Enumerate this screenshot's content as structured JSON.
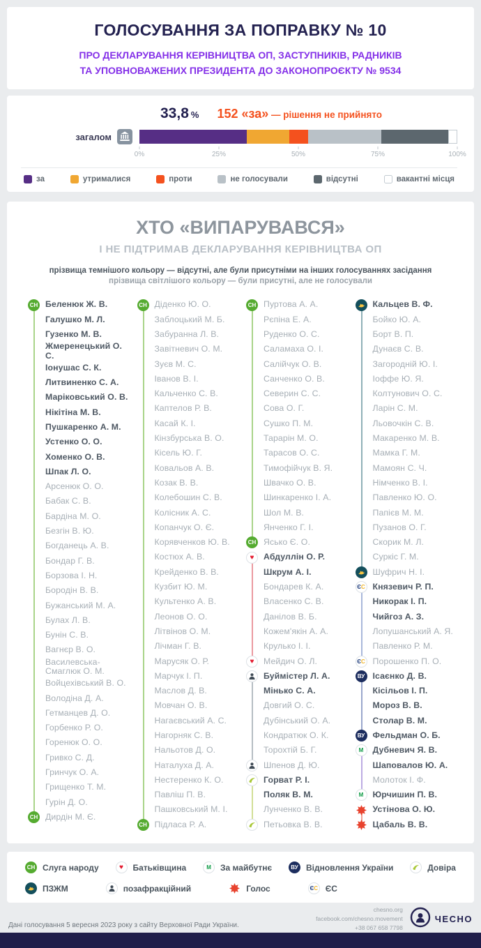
{
  "header": {
    "title": "ГОЛОСУВАННЯ ЗА ПОПРАВКУ № 10",
    "subtitle_line1": "ПРО ДЕКЛАРУВАННЯ КЕРІВНИЦТВА ОП, ЗАСТУПНИКІВ, РАДНИКІВ",
    "subtitle_line2": "ТА УПОВНОВАЖЕНИХ ПРЕЗИДЕНТА ДО ЗАКОНОПРОЄКТУ № 9534"
  },
  "vote": {
    "percent": "33,8",
    "percent_sign": "%",
    "result_highlight": "152 «за»",
    "result_rest": " — рішення не прийнято",
    "bar_label": "загалом"
  },
  "chart_data": {
    "type": "bar",
    "variant": "stacked-horizontal",
    "title": "Голосування за поправку № 10 — загалом",
    "x_ticks": [
      "0%",
      "25%",
      "50%",
      "75%",
      "100%"
    ],
    "xlim": [
      0,
      100
    ],
    "series": [
      {
        "key": "za",
        "name": "за",
        "value": 33.8,
        "color": "#562e85"
      },
      {
        "key": "utrymalysia",
        "name": "утрималися",
        "value": 13.4,
        "color": "#f0a732"
      },
      {
        "key": "proty",
        "name": "проти",
        "value": 5.8,
        "color": "#f4511e"
      },
      {
        "key": "ne_holosuvaly",
        "name": "не голосували",
        "value": 23.0,
        "color": "#b9c1c7"
      },
      {
        "key": "vidsutni",
        "name": "відсутні",
        "value": 21.2,
        "color": "#5c676e"
      },
      {
        "key": "vakantni",
        "name": "вакантні місця",
        "value": 2.8,
        "color": "#ffffff",
        "border": "#c4ccd2"
      }
    ]
  },
  "who": {
    "title": "ХТО «ВИПАРУВАВСЯ»",
    "subtitle": "І НЕ ПІДТРИМАВ ДЕКЛАРУВАННЯ КЕРІВНИЦТВА ОП",
    "note_dark": "прізвища темнішого кольору — відсутні, але були присутніми на інших голосуваннях засідання",
    "note_light": "прізвища світлішого кольору — були присутні, але не голосували"
  },
  "parties": {
    "sn": {
      "label": "Слуга народу",
      "abbr": "СН",
      "icon": "sn-badge",
      "color": "#55ab30",
      "line": "#a9d489"
    },
    "batk": {
      "label": "Батьківщина",
      "icon": "heart",
      "color": "#e3172c",
      "line": "#eb9aa0"
    },
    "zm": {
      "label": "За майбутнє",
      "abbr": "М",
      "icon": "zm-badge",
      "color": "#0d9a44",
      "line": "#bcabe2"
    },
    "vu": {
      "label": "Відновлення України",
      "abbr": "ВУ",
      "icon": "vu-badge",
      "color": "#1c2d5e",
      "line": "#9aa7cc"
    },
    "dovira": {
      "label": "Довіра",
      "icon": "dovira-swoosh",
      "color": "#a9c838",
      "line": "#d2df96"
    },
    "pzhm": {
      "label": "ПЗЖМ",
      "icon": "dove",
      "color": "#144f5c",
      "line": "#8fb0b7"
    },
    "nf": {
      "label": "позафракційний",
      "icon": "person",
      "color": "#3e4a55",
      "line": "#b6bdc3"
    },
    "holos": {
      "label": "Голос",
      "icon": "burst",
      "color": "#e8432e",
      "line": "#f2a195"
    },
    "es": {
      "label": "ЄС",
      "abbr": "ЄС",
      "icon": "es-badge",
      "color": "#1f3d7c",
      "color2": "#f0b429",
      "line": "#a9b8da"
    }
  },
  "legend_rows": [
    [
      "sn",
      "batk",
      "zm",
      "vu",
      "dovira"
    ],
    [
      "pzhm",
      "nf",
      "holos",
      "es"
    ]
  ],
  "columns": [
    [
      {
        "party": "sn",
        "members": [
          {
            "n": "Беленюк Ж. В.",
            "s": "d"
          },
          {
            "n": "Галушко М. Л.",
            "s": "d"
          },
          {
            "n": "Гузенко М. В.",
            "s": "d"
          },
          {
            "n": "Жмеренецький О. С.",
            "s": "d"
          },
          {
            "n": "Іонушас С. К.",
            "s": "d"
          },
          {
            "n": "Литвиненко С. А.",
            "s": "d"
          },
          {
            "n": "Маріковський О. В.",
            "s": "d"
          },
          {
            "n": "Нікітіна М. В.",
            "s": "d"
          },
          {
            "n": "Пушкаренко А. М.",
            "s": "d"
          },
          {
            "n": "Устенко О. О.",
            "s": "d"
          },
          {
            "n": "Хоменко О. В.",
            "s": "d"
          },
          {
            "n": "Шпак Л. О.",
            "s": "d"
          },
          {
            "n": "Арсенюк О. О.",
            "s": "l"
          },
          {
            "n": "Бабак С. В.",
            "s": "l"
          },
          {
            "n": "Бардіна М. О.",
            "s": "l"
          },
          {
            "n": "Безгін В. Ю.",
            "s": "l"
          },
          {
            "n": "Богданець А. В.",
            "s": "l"
          },
          {
            "n": "Бондар Г. В.",
            "s": "l"
          },
          {
            "n": "Борзова І. Н.",
            "s": "l"
          },
          {
            "n": "Бородін В. В.",
            "s": "l"
          },
          {
            "n": "Бужанський М. А.",
            "s": "l"
          },
          {
            "n": "Булах Л. В.",
            "s": "l"
          },
          {
            "n": "Бунін С. В.",
            "s": "l"
          },
          {
            "n": "Вагнєр В. О.",
            "s": "l"
          },
          {
            "n": "Василевська-Смаглюк О. М.",
            "s": "l"
          },
          {
            "n": "Войцехівський В. О.",
            "s": "l"
          },
          {
            "n": "Володіна Д. А.",
            "s": "l"
          },
          {
            "n": "Гетманцев Д. О.",
            "s": "l"
          },
          {
            "n": "Горбенко Р. О.",
            "s": "l"
          },
          {
            "n": "Горенюк О. О.",
            "s": "l"
          },
          {
            "n": "Гривко С. Д.",
            "s": "l"
          },
          {
            "n": "Гринчук О. А.",
            "s": "l"
          },
          {
            "n": "Грищенко Т. М.",
            "s": "l"
          },
          {
            "n": "Гурін Д. О.",
            "s": "l"
          },
          {
            "n": "Дирдін М. Є.",
            "s": "l"
          }
        ]
      }
    ],
    [
      {
        "party": "sn",
        "members": [
          {
            "n": "Діденко Ю. О.",
            "s": "l"
          },
          {
            "n": "Заблоцький М. Б.",
            "s": "l"
          },
          {
            "n": "Забуранна Л. В.",
            "s": "l"
          },
          {
            "n": "Завітневич О. М.",
            "s": "l"
          },
          {
            "n": "Зуєв М. С.",
            "s": "l"
          },
          {
            "n": "Іванов В. І.",
            "s": "l"
          },
          {
            "n": "Кальченко С. В.",
            "s": "l"
          },
          {
            "n": "Каптелов Р. В.",
            "s": "l"
          },
          {
            "n": "Касай К. І.",
            "s": "l"
          },
          {
            "n": "Кінзбурська В. О.",
            "s": "l"
          },
          {
            "n": "Кісель Ю. Г.",
            "s": "l"
          },
          {
            "n": "Ковальов А. В.",
            "s": "l"
          },
          {
            "n": "Козак В. В.",
            "s": "l"
          },
          {
            "n": "Колебошин С. В.",
            "s": "l"
          },
          {
            "n": "Колісник А. С.",
            "s": "l"
          },
          {
            "n": "Копанчук О. Є.",
            "s": "l"
          },
          {
            "n": "Корявченков Ю. В.",
            "s": "l"
          },
          {
            "n": "Костюх А. В.",
            "s": "l"
          },
          {
            "n": "Крейденко В. В.",
            "s": "l"
          },
          {
            "n": "Кузбит Ю. М.",
            "s": "l"
          },
          {
            "n": "Культенко А. В.",
            "s": "l"
          },
          {
            "n": "Леонов О. О.",
            "s": "l"
          },
          {
            "n": "Літвінов О. М.",
            "s": "l"
          },
          {
            "n": "Лічман Г. В.",
            "s": "l"
          },
          {
            "n": "Марусяк О. Р.",
            "s": "l"
          },
          {
            "n": "Марчук І. П.",
            "s": "l"
          },
          {
            "n": "Маслов Д. В.",
            "s": "l"
          },
          {
            "n": "Мовчан О. В.",
            "s": "l"
          },
          {
            "n": "Нагаєвський А. С.",
            "s": "l"
          },
          {
            "n": "Нагорняк С. В.",
            "s": "l"
          },
          {
            "n": "Нальотов Д. О.",
            "s": "l"
          },
          {
            "n": "Наталуха Д. А.",
            "s": "l"
          },
          {
            "n": "Нестеренко К. О.",
            "s": "l"
          },
          {
            "n": "Павліш П. В.",
            "s": "l"
          },
          {
            "n": "Пашковський М. І.",
            "s": "l"
          },
          {
            "n": "Підласа Р. А.",
            "s": "l"
          }
        ]
      }
    ],
    [
      {
        "party": "sn",
        "members": [
          {
            "n": "Пуртова А. А.",
            "s": "l"
          },
          {
            "n": "Рєпіна Е. А.",
            "s": "l"
          },
          {
            "n": "Руденко О. С.",
            "s": "l"
          },
          {
            "n": "Саламаха О. І.",
            "s": "l"
          },
          {
            "n": "Салійчук О. В.",
            "s": "l"
          },
          {
            "n": "Санченко О. В.",
            "s": "l"
          },
          {
            "n": "Северин С. С.",
            "s": "l"
          },
          {
            "n": "Сова О. Г.",
            "s": "l"
          },
          {
            "n": "Сушко П. М.",
            "s": "l"
          },
          {
            "n": "Тарарін М. О.",
            "s": "l"
          },
          {
            "n": "Тарасов О. С.",
            "s": "l"
          },
          {
            "n": "Тимофійчук В. Я.",
            "s": "l"
          },
          {
            "n": "Швачко О. В.",
            "s": "l"
          },
          {
            "n": "Шинкаренко І. А.",
            "s": "l"
          },
          {
            "n": "Шол М. В.",
            "s": "l"
          },
          {
            "n": "Янченко Г. І.",
            "s": "l"
          },
          {
            "n": "Ясько Є. О.",
            "s": "l"
          }
        ]
      },
      {
        "party": "batk",
        "members": [
          {
            "n": "Абдуллін О. Р.",
            "s": "d"
          },
          {
            "n": "Шкрум А. І.",
            "s": "d"
          },
          {
            "n": "Бондарев К. А.",
            "s": "l"
          },
          {
            "n": "Власенко С. В.",
            "s": "l"
          },
          {
            "n": "Данілов В. Б.",
            "s": "l"
          },
          {
            "n": "Кожем'якін А. А.",
            "s": "l"
          },
          {
            "n": "Крулько І. І.",
            "s": "l"
          },
          {
            "n": "Мейдич О. Л.",
            "s": "l"
          }
        ]
      },
      {
        "party": "nf",
        "members": [
          {
            "n": "Буймістер Л. А.",
            "s": "d"
          },
          {
            "n": "Мінько С. А.",
            "s": "d"
          },
          {
            "n": "Довгий О. С.",
            "s": "l"
          },
          {
            "n": "Дубінський О. А.",
            "s": "l"
          },
          {
            "n": "Кондратюк О. К.",
            "s": "l"
          },
          {
            "n": "Торохтій Б. Г.",
            "s": "l"
          },
          {
            "n": "Шпенов Д. Ю.",
            "s": "l"
          }
        ]
      },
      {
        "party": "dovira",
        "members": [
          {
            "n": "Горват Р. І.",
            "s": "d"
          },
          {
            "n": "Поляк В. М.",
            "s": "d"
          },
          {
            "n": "Лунченко В. В.",
            "s": "l"
          },
          {
            "n": "Петьовка В. В.",
            "s": "l"
          }
        ]
      }
    ],
    [
      {
        "party": "pzhm",
        "members": [
          {
            "n": "Кальцев В. Ф.",
            "s": "d"
          },
          {
            "n": "Бойко Ю. А.",
            "s": "l"
          },
          {
            "n": "Борт В. П.",
            "s": "l"
          },
          {
            "n": "Дунаєв С. В.",
            "s": "l"
          },
          {
            "n": "Загородній Ю. І.",
            "s": "l"
          },
          {
            "n": "Іоффе Ю. Я.",
            "s": "l"
          },
          {
            "n": "Колтунович О. С.",
            "s": "l"
          },
          {
            "n": "Ларін С. М.",
            "s": "l"
          },
          {
            "n": "Льовочкін С. В.",
            "s": "l"
          },
          {
            "n": "Макаренко М. В.",
            "s": "l"
          },
          {
            "n": "Мамка Г. М.",
            "s": "l"
          },
          {
            "n": "Мамоян С. Ч.",
            "s": "l"
          },
          {
            "n": "Німченко В. І.",
            "s": "l"
          },
          {
            "n": "Павленко Ю. О.",
            "s": "l"
          },
          {
            "n": "Папієв М. М.",
            "s": "l"
          },
          {
            "n": "Пузанов О. Г.",
            "s": "l"
          },
          {
            "n": "Скорик М. Л.",
            "s": "l"
          },
          {
            "n": "Суркіс Г. М.",
            "s": "l"
          },
          {
            "n": "Шуфрич Н. І.",
            "s": "l"
          }
        ]
      },
      {
        "party": "es",
        "members": [
          {
            "n": "Князевич Р. П.",
            "s": "d"
          },
          {
            "n": "Никорак І. П.",
            "s": "d"
          },
          {
            "n": "Чийгоз А. З.",
            "s": "d"
          },
          {
            "n": "Лопушанський А. Я.",
            "s": "l"
          },
          {
            "n": "Павленко Р. М.",
            "s": "l"
          },
          {
            "n": "Порошенко П. О.",
            "s": "l"
          }
        ]
      },
      {
        "party": "vu",
        "members": [
          {
            "n": "Ісаєнко Д. В.",
            "s": "d"
          },
          {
            "n": "Кісільов І. П.",
            "s": "d"
          },
          {
            "n": "Мороз В. В.",
            "s": "d"
          },
          {
            "n": "Столар В. М.",
            "s": "d"
          },
          {
            "n": "Фельдман О. Б.",
            "s": "d"
          }
        ]
      },
      {
        "party": "zm",
        "members": [
          {
            "n": "Дубневич Я. В.",
            "s": "d"
          },
          {
            "n": "Шаповалов Ю. А.",
            "s": "d"
          },
          {
            "n": "Молоток І. Ф.",
            "s": "l"
          },
          {
            "n": "Юрчишин П. В.",
            "s": "d"
          }
        ]
      },
      {
        "party": "holos",
        "members": [
          {
            "n": "Устінова О. Ю.",
            "s": "d"
          },
          {
            "n": "Цабаль В. В.",
            "s": "d"
          }
        ]
      }
    ]
  ],
  "footer": {
    "source": "Дані голосування 5 вересня 2023 року з сайту Верховної Ради України.",
    "site": "chesno.org",
    "facebook": "facebook.com/chesno.movement",
    "phone": "+38 067 658 7798",
    "logo_text": "ЧЕСНО"
  }
}
